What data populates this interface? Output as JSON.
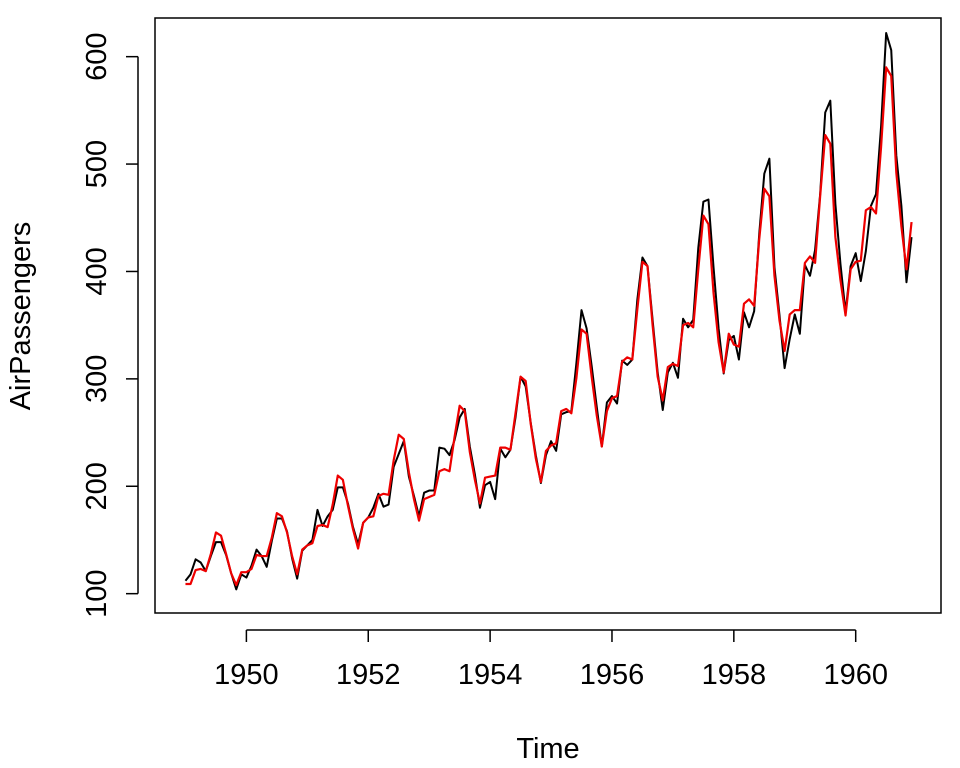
{
  "chart_data": {
    "type": "line",
    "title": "",
    "xlabel": "Time",
    "ylabel": "AirPassengers",
    "xlim": [
      1948.5,
      1961.4
    ],
    "ylim": [
      82,
      636
    ],
    "x_ticks": [
      1950,
      1952,
      1954,
      1956,
      1958,
      1960
    ],
    "x_tick_labels": [
      "1950",
      "1952",
      "1954",
      "1956",
      "1958",
      "1960"
    ],
    "y_ticks": [
      100,
      200,
      300,
      400,
      500,
      600
    ],
    "y_tick_labels": [
      "100",
      "200",
      "300",
      "400",
      "500",
      "600"
    ],
    "grid": false,
    "legend": "none",
    "series": [
      {
        "color": "#000000",
        "x_start": 1949.0,
        "x_step": 0.083333,
        "values": [
          112,
          118,
          132,
          129,
          121,
          135,
          148,
          148,
          136,
          119,
          104,
          118,
          115,
          126,
          141,
          135,
          125,
          149,
          170,
          170,
          158,
          133,
          114,
          140,
          145,
          150,
          178,
          163,
          172,
          178,
          199,
          199,
          184,
          162,
          146,
          166,
          171,
          180,
          193,
          181,
          183,
          218,
          230,
          242,
          209,
          191,
          172,
          194,
          196,
          196,
          236,
          235,
          229,
          243,
          264,
          272,
          237,
          211,
          180,
          201,
          204,
          188,
          235,
          227,
          234,
          264,
          302,
          293,
          259,
          229,
          203,
          229,
          242,
          233,
          267,
          269,
          270,
          315,
          364,
          347,
          312,
          274,
          237,
          278,
          284,
          277,
          317,
          313,
          318,
          374,
          413,
          405,
          355,
          306,
          271,
          306,
          315,
          301,
          356,
          348,
          355,
          422,
          465,
          467,
          404,
          347,
          305,
          336,
          340,
          318,
          362,
          348,
          363,
          435,
          491,
          505,
          404,
          359,
          310,
          337,
          360,
          342,
          406,
          396,
          420,
          472,
          548,
          559,
          463,
          407,
          362,
          405,
          417,
          391,
          419,
          461,
          472,
          535,
          622,
          606,
          508,
          461,
          390,
          432
        ]
      },
      {
        "color": "#ee0000",
        "x_start": 1949.0,
        "x_step": 0.083333,
        "values": [
          109,
          109,
          122,
          123,
          121,
          137,
          157,
          154,
          137,
          119,
          108,
          120,
          120,
          123,
          136,
          135,
          135,
          152,
          175,
          172,
          157,
          135,
          118,
          141,
          145,
          147,
          163,
          164,
          162,
          183,
          210,
          206,
          182,
          160,
          142,
          166,
          171,
          172,
          191,
          193,
          192,
          224,
          248,
          244,
          213,
          188,
          168,
          188,
          190,
          192,
          214,
          216,
          214,
          246,
          275,
          270,
          232,
          206,
          184,
          208,
          209,
          210,
          236,
          236,
          234,
          268,
          302,
          298,
          258,
          226,
          204,
          233,
          238,
          240,
          270,
          272,
          268,
          301,
          346,
          342,
          302,
          266,
          237,
          270,
          282,
          284,
          316,
          320,
          318,
          365,
          409,
          405,
          350,
          302,
          280,
          311,
          314,
          312,
          350,
          352,
          348,
          402,
          452,
          444,
          380,
          334,
          306,
          342,
          332,
          330,
          370,
          374,
          368,
          430,
          477,
          470,
          396,
          354,
          326,
          360,
          364,
          364,
          408,
          414,
          408,
          470,
          527,
          519,
          432,
          392,
          359,
          402,
          409,
          410,
          457,
          460,
          454,
          516,
          590,
          582,
          492,
          442,
          402,
          446
        ]
      }
    ]
  }
}
